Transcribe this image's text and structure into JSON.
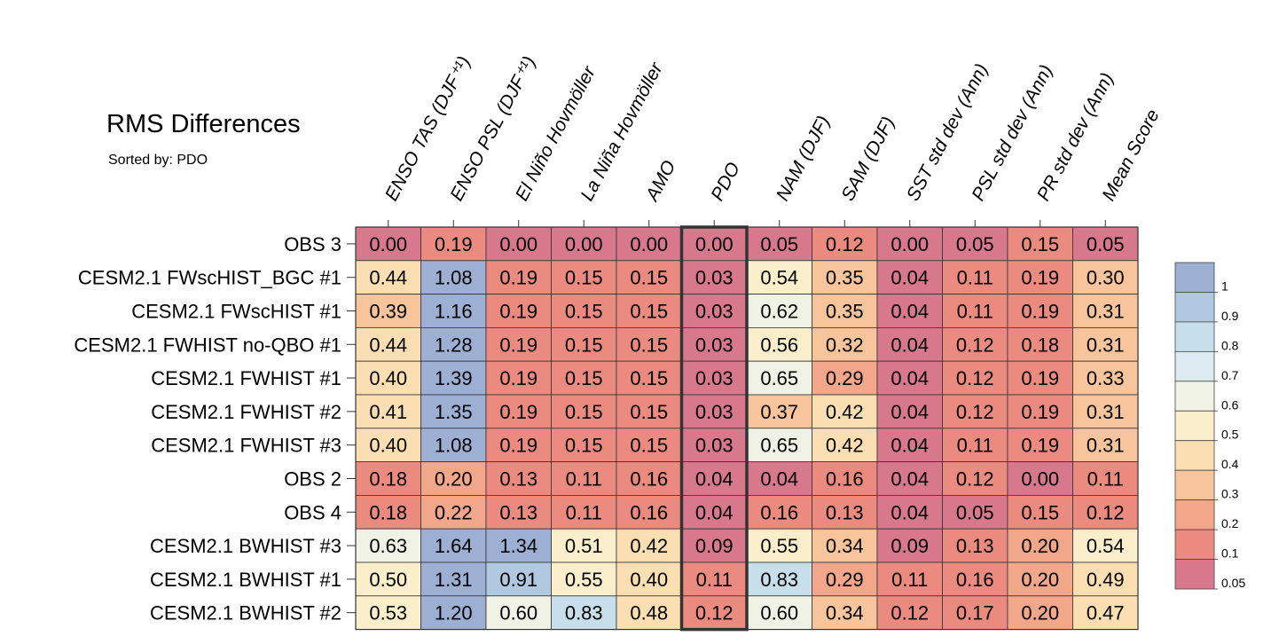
{
  "chart_data": {
    "type": "heatmap",
    "title": "RMS Differences",
    "subtitle": "Sorted by: PDO",
    "columns": [
      "ENSO TAS (DJF⁺¹)",
      "ENSO PSL (DJF⁺¹)",
      "El Niño Hovmöller",
      "La Niña Hovmöller",
      "AMO",
      "PDO",
      "NAM (DJF)",
      "SAM (DJF)",
      "SST std dev (Ann)",
      "PSL std dev (Ann)",
      "PR std dev (Ann)",
      "Mean Score"
    ],
    "rows": [
      "OBS 3",
      "CESM2.1 FWscHIST_BGC #1",
      "CESM2.1 FWscHIST #1",
      "CESM2.1 FWHIST no-QBO #1",
      "CESM2.1 FWHIST #1",
      "CESM2.1 FWHIST #2",
      "CESM2.1 FWHIST #3",
      "OBS 2",
      "OBS 4",
      "CESM2.1 BWHIST #3",
      "CESM2.1 BWHIST #1",
      "CESM2.1 BWHIST #2"
    ],
    "values": [
      [
        "0.00",
        "0.19",
        "0.00",
        "0.00",
        "0.00",
        "0.00",
        "0.05",
        "0.12",
        "0.00",
        "0.05",
        "0.15",
        "0.05"
      ],
      [
        "0.44",
        "1.08",
        "0.19",
        "0.15",
        "0.15",
        "0.03",
        "0.54",
        "0.35",
        "0.04",
        "0.11",
        "0.19",
        "0.30"
      ],
      [
        "0.39",
        "1.16",
        "0.19",
        "0.15",
        "0.15",
        "0.03",
        "0.62",
        "0.35",
        "0.04",
        "0.11",
        "0.19",
        "0.31"
      ],
      [
        "0.44",
        "1.28",
        "0.19",
        "0.15",
        "0.15",
        "0.03",
        "0.56",
        "0.32",
        "0.04",
        "0.12",
        "0.18",
        "0.31"
      ],
      [
        "0.40",
        "1.39",
        "0.19",
        "0.15",
        "0.15",
        "0.03",
        "0.65",
        "0.29",
        "0.04",
        "0.12",
        "0.19",
        "0.33"
      ],
      [
        "0.41",
        "1.35",
        "0.19",
        "0.15",
        "0.15",
        "0.03",
        "0.37",
        "0.42",
        "0.04",
        "0.12",
        "0.19",
        "0.31"
      ],
      [
        "0.40",
        "1.08",
        "0.19",
        "0.15",
        "0.15",
        "0.03",
        "0.65",
        "0.42",
        "0.04",
        "0.11",
        "0.19",
        "0.31"
      ],
      [
        "0.18",
        "0.20",
        "0.13",
        "0.11",
        "0.16",
        "0.04",
        "0.04",
        "0.16",
        "0.04",
        "0.12",
        "0.00",
        "0.11"
      ],
      [
        "0.18",
        "0.22",
        "0.13",
        "0.11",
        "0.16",
        "0.04",
        "0.16",
        "0.13",
        "0.04",
        "0.05",
        "0.15",
        "0.12"
      ],
      [
        "0.63",
        "1.64",
        "1.34",
        "0.51",
        "0.42",
        "0.09",
        "0.55",
        "0.34",
        "0.09",
        "0.13",
        "0.20",
        "0.54"
      ],
      [
        "0.50",
        "1.31",
        "0.91",
        "0.55",
        "0.40",
        "0.11",
        "0.83",
        "0.29",
        "0.11",
        "0.16",
        "0.20",
        "0.49"
      ],
      [
        "0.53",
        "1.20",
        "0.60",
        "0.83",
        "0.48",
        "0.12",
        "0.60",
        "0.34",
        "0.12",
        "0.17",
        "0.20",
        "0.47"
      ]
    ],
    "highlighted_column": "PDO",
    "colorbar": {
      "levels": [
        "1",
        "0.9",
        "0.8",
        "0.7",
        "0.6",
        "0.5",
        "0.4",
        "0.3",
        "0.2",
        "0.1",
        "0.05"
      ],
      "colors": [
        "#9dafd3",
        "#b0c9e0",
        "#c6dfeb",
        "#dbebf1",
        "#f0f2e6",
        "#fbeeca",
        "#fbdfb2",
        "#f7c49c",
        "#f2a68a",
        "#eb8b7f",
        "#d8788c"
      ],
      "thresholds": [
        1,
        0.9,
        0.8,
        0.7,
        0.6,
        0.5,
        0.4,
        0.3,
        0.2,
        0.1,
        0.05
      ]
    }
  }
}
